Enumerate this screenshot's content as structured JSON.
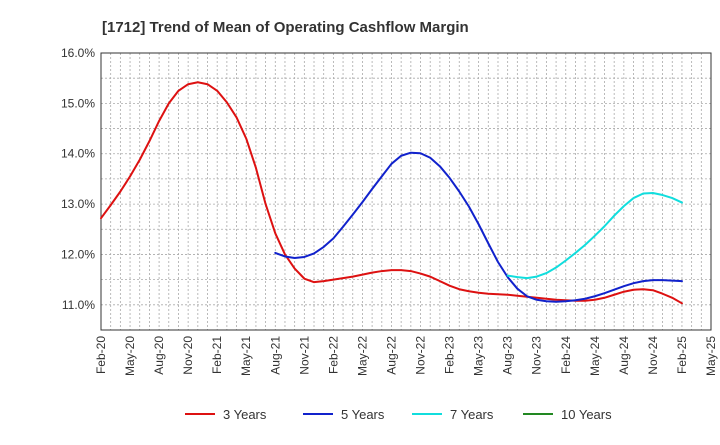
{
  "chart_data": {
    "type": "line",
    "title": "[1712]  Trend of Mean of Operating Cashflow Margin",
    "xlabel": "",
    "ylabel": "",
    "ylim": [
      10.5,
      16.0
    ],
    "y_ticks": [
      "11.0%",
      "12.0%",
      "13.0%",
      "14.0%",
      "15.0%",
      "16.0%"
    ],
    "y_tick_values": [
      11.0,
      12.0,
      13.0,
      14.0,
      15.0,
      16.0
    ],
    "x_ticks": [
      "Feb-20",
      "May-20",
      "Aug-20",
      "Nov-20",
      "Feb-21",
      "May-21",
      "Aug-21",
      "Nov-21",
      "Feb-22",
      "May-22",
      "Aug-22",
      "Nov-22",
      "Feb-23",
      "May-23",
      "Aug-23",
      "Nov-23",
      "Feb-24",
      "May-24",
      "Aug-24",
      "Nov-24",
      "Feb-25",
      "May-25"
    ],
    "x_start": "2020-02",
    "x_end": "2025-05",
    "grid": true,
    "legend_position": "bottom",
    "series": [
      {
        "name": "3 Years",
        "color": "#dd1111",
        "points": [
          [
            "2020-02",
            12.72
          ],
          [
            "2020-03",
            12.98
          ],
          [
            "2020-04",
            13.25
          ],
          [
            "2020-05",
            13.55
          ],
          [
            "2020-06",
            13.88
          ],
          [
            "2020-07",
            14.25
          ],
          [
            "2020-08",
            14.65
          ],
          [
            "2020-09",
            15.0
          ],
          [
            "2020-10",
            15.25
          ],
          [
            "2020-11",
            15.38
          ],
          [
            "2020-12",
            15.42
          ],
          [
            "2021-01",
            15.38
          ],
          [
            "2021-02",
            15.25
          ],
          [
            "2021-03",
            15.02
          ],
          [
            "2021-04",
            14.72
          ],
          [
            "2021-05",
            14.3
          ],
          [
            "2021-06",
            13.72
          ],
          [
            "2021-07",
            13.0
          ],
          [
            "2021-08",
            12.42
          ],
          [
            "2021-09",
            12.0
          ],
          [
            "2021-10",
            11.72
          ],
          [
            "2021-11",
            11.52
          ],
          [
            "2021-12",
            11.45
          ],
          [
            "2022-01",
            11.47
          ],
          [
            "2022-02",
            11.5
          ],
          [
            "2022-03",
            11.53
          ],
          [
            "2022-04",
            11.56
          ],
          [
            "2022-05",
            11.6
          ],
          [
            "2022-06",
            11.64
          ],
          [
            "2022-07",
            11.67
          ],
          [
            "2022-08",
            11.69
          ],
          [
            "2022-09",
            11.69
          ],
          [
            "2022-10",
            11.67
          ],
          [
            "2022-11",
            11.62
          ],
          [
            "2022-12",
            11.56
          ],
          [
            "2023-01",
            11.47
          ],
          [
            "2023-02",
            11.38
          ],
          [
            "2023-03",
            11.31
          ],
          [
            "2023-04",
            11.27
          ],
          [
            "2023-05",
            11.24
          ],
          [
            "2023-06",
            11.22
          ],
          [
            "2023-07",
            11.21
          ],
          [
            "2023-08",
            11.2
          ],
          [
            "2023-09",
            11.18
          ],
          [
            "2023-10",
            11.16
          ],
          [
            "2023-11",
            11.14
          ],
          [
            "2023-12",
            11.12
          ],
          [
            "2024-01",
            11.1
          ],
          [
            "2024-02",
            11.09
          ],
          [
            "2024-03",
            11.08
          ],
          [
            "2024-04",
            11.08
          ],
          [
            "2024-05",
            11.1
          ],
          [
            "2024-06",
            11.14
          ],
          [
            "2024-07",
            11.2
          ],
          [
            "2024-08",
            11.26
          ],
          [
            "2024-09",
            11.3
          ],
          [
            "2024-10",
            11.31
          ],
          [
            "2024-11",
            11.29
          ],
          [
            "2024-12",
            11.22
          ],
          [
            "2025-01",
            11.14
          ],
          [
            "2025-02",
            11.03
          ]
        ]
      },
      {
        "name": "5 Years",
        "color": "#1122cc",
        "points": [
          [
            "2021-08",
            12.03
          ],
          [
            "2021-09",
            11.96
          ],
          [
            "2021-10",
            11.93
          ],
          [
            "2021-11",
            11.95
          ],
          [
            "2021-12",
            12.02
          ],
          [
            "2022-01",
            12.15
          ],
          [
            "2022-02",
            12.32
          ],
          [
            "2022-03",
            12.55
          ],
          [
            "2022-04",
            12.79
          ],
          [
            "2022-05",
            13.04
          ],
          [
            "2022-06",
            13.3
          ],
          [
            "2022-07",
            13.55
          ],
          [
            "2022-08",
            13.8
          ],
          [
            "2022-09",
            13.96
          ],
          [
            "2022-10",
            14.02
          ],
          [
            "2022-11",
            14.01
          ],
          [
            "2022-12",
            13.92
          ],
          [
            "2023-01",
            13.75
          ],
          [
            "2023-02",
            13.52
          ],
          [
            "2023-03",
            13.25
          ],
          [
            "2023-04",
            12.95
          ],
          [
            "2023-05",
            12.6
          ],
          [
            "2023-06",
            12.22
          ],
          [
            "2023-07",
            11.85
          ],
          [
            "2023-08",
            11.55
          ],
          [
            "2023-09",
            11.32
          ],
          [
            "2023-10",
            11.17
          ],
          [
            "2023-11",
            11.1
          ],
          [
            "2023-12",
            11.07
          ],
          [
            "2024-01",
            11.06
          ],
          [
            "2024-02",
            11.07
          ],
          [
            "2024-03",
            11.09
          ],
          [
            "2024-04",
            11.12
          ],
          [
            "2024-05",
            11.17
          ],
          [
            "2024-06",
            11.23
          ],
          [
            "2024-07",
            11.3
          ],
          [
            "2024-08",
            11.37
          ],
          [
            "2024-09",
            11.43
          ],
          [
            "2024-10",
            11.47
          ],
          [
            "2024-11",
            11.49
          ],
          [
            "2024-12",
            11.49
          ],
          [
            "2025-01",
            11.48
          ],
          [
            "2025-02",
            11.47
          ]
        ]
      },
      {
        "name": "7 Years",
        "color": "#11dddd",
        "points": [
          [
            "2023-08",
            11.58
          ],
          [
            "2023-09",
            11.55
          ],
          [
            "2023-10",
            11.53
          ],
          [
            "2023-11",
            11.56
          ],
          [
            "2023-12",
            11.63
          ],
          [
            "2024-01",
            11.74
          ],
          [
            "2024-02",
            11.88
          ],
          [
            "2024-03",
            12.03
          ],
          [
            "2024-04",
            12.19
          ],
          [
            "2024-05",
            12.37
          ],
          [
            "2024-06",
            12.56
          ],
          [
            "2024-07",
            12.77
          ],
          [
            "2024-08",
            12.96
          ],
          [
            "2024-09",
            13.12
          ],
          [
            "2024-10",
            13.21
          ],
          [
            "2024-11",
            13.22
          ],
          [
            "2024-12",
            13.18
          ],
          [
            "2025-01",
            13.12
          ],
          [
            "2025-02",
            13.03
          ]
        ]
      },
      {
        "name": "10 Years",
        "color": "#228822",
        "points": []
      }
    ]
  }
}
